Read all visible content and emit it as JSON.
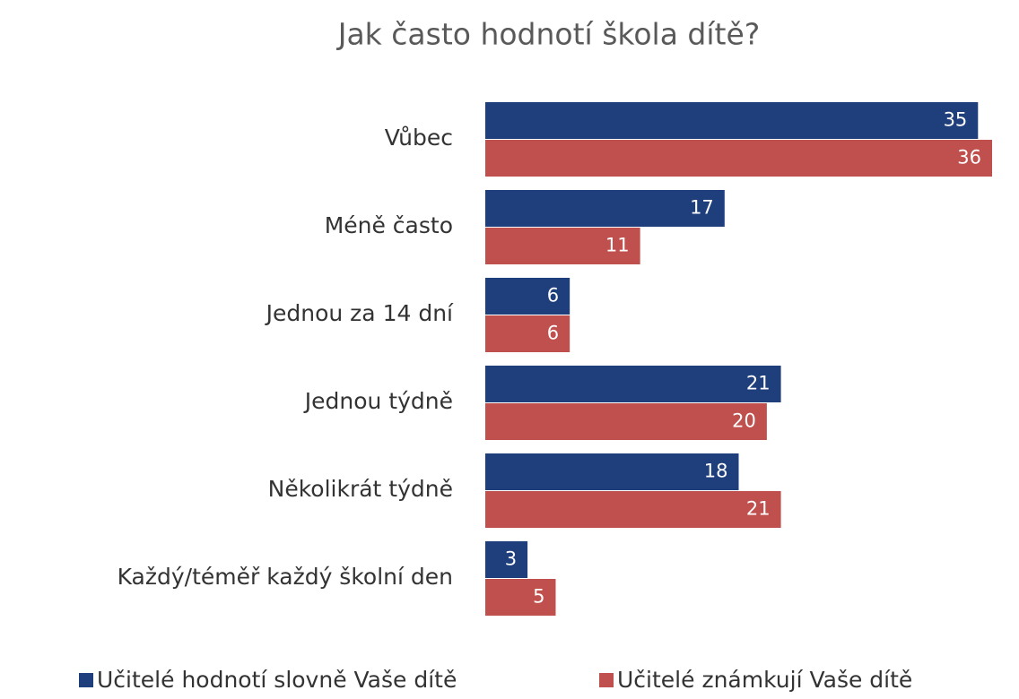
{
  "chart_data": {
    "type": "hbar",
    "title": "Jak často hodnotí škola dítě?",
    "categories": [
      "Vůbec",
      "Méně často",
      "Jednou za 14 dní",
      "Jednou týdně",
      "Několikrát týdně",
      "Každý/téměř každý školní den"
    ],
    "series": [
      {
        "name": "Učitelé hodnotí slovně Vaše dítě",
        "color": "#1f3e7c",
        "values": [
          35,
          17,
          6,
          21,
          18,
          3
        ]
      },
      {
        "name": "Učitelé známkují Vaše dítě",
        "color": "#c0504d",
        "values": [
          36,
          11,
          6,
          20,
          21,
          5
        ]
      }
    ],
    "legend": "bottom"
  }
}
